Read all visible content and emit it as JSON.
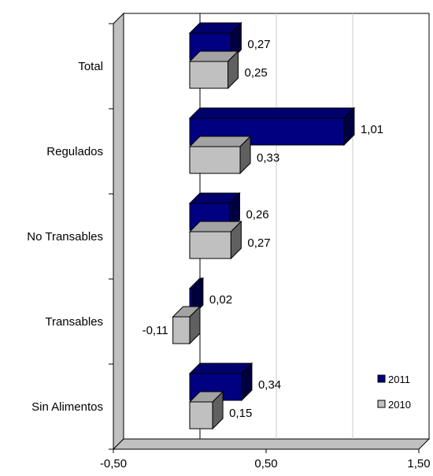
{
  "chart_data": {
    "type": "bar",
    "orientation": "horizontal",
    "style": "3d",
    "categories": [
      "Total",
      "Regulados",
      "No Transables",
      "Transables",
      "Sin Alimentos"
    ],
    "series": [
      {
        "name": "2011",
        "values": [
          0.27,
          1.01,
          0.26,
          0.02,
          0.34
        ],
        "color": "#000080",
        "labels": [
          "0,27",
          "1,01",
          "0,26",
          "0,02",
          "0,34"
        ]
      },
      {
        "name": "2010",
        "values": [
          0.25,
          0.33,
          0.27,
          -0.11,
          0.15
        ],
        "color": "#c0c0c0",
        "labels": [
          "0,25",
          "0,33",
          "0,27",
          "-0,11",
          "0,15"
        ]
      }
    ],
    "xlim": [
      -0.5,
      1.5
    ],
    "xticks": [
      -0.5,
      0.5,
      1.5
    ],
    "xtick_labels": [
      "-0,50",
      "0,50",
      "1,50"
    ],
    "grid": "vertical",
    "legend": "bottom-right"
  }
}
